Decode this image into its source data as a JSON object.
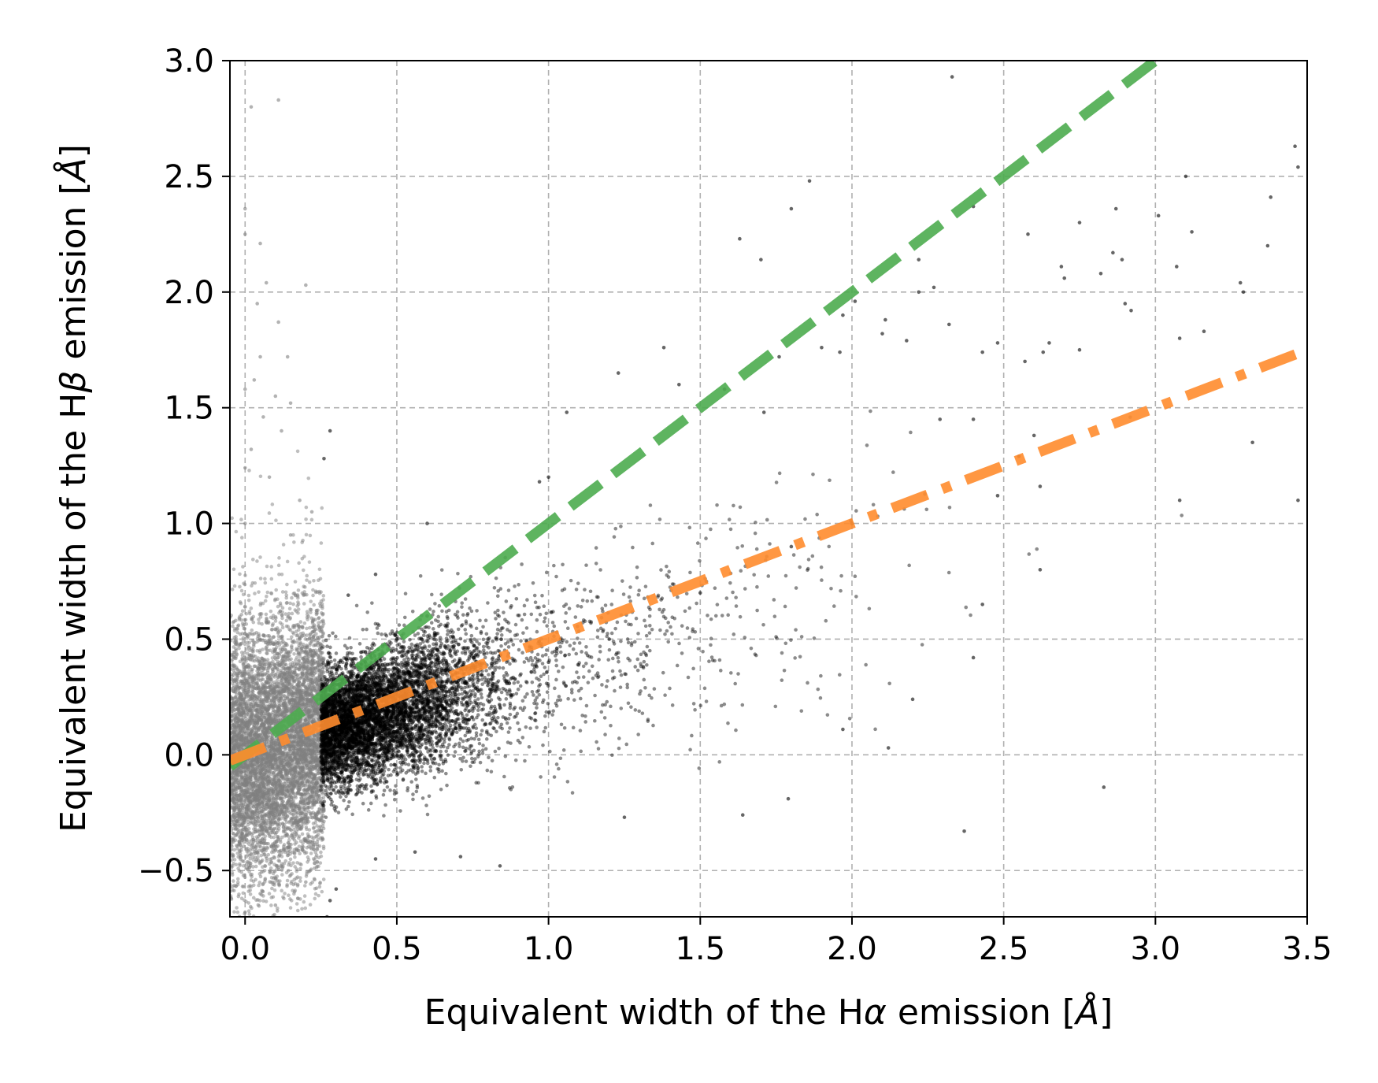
{
  "chart_data": {
    "type": "scatter",
    "title": "",
    "xlabel": {
      "prefix": "Equivalent width of the H",
      "symbol": "α",
      "suffix": " emission [",
      "unit": "Å",
      "close": "]"
    },
    "ylabel": {
      "prefix": "Equivalent width of the H",
      "symbol": "β",
      "suffix": " emission [",
      "unit": "Å",
      "close": "]"
    },
    "xlim": [
      -0.05,
      3.5
    ],
    "ylim": [
      -0.7,
      3.0
    ],
    "xticks": [
      "0.0",
      "0.5",
      "1.0",
      "1.5",
      "2.0",
      "2.5",
      "3.0",
      "3.5"
    ],
    "xtick_values": [
      0.0,
      0.5,
      1.0,
      1.5,
      2.0,
      2.5,
      3.0,
      3.5
    ],
    "yticks": [
      "−0.5",
      "0.0",
      "0.5",
      "1.0",
      "1.5",
      "2.0",
      "2.5",
      "3.0"
    ],
    "ytick_values": [
      -0.5,
      0.0,
      0.5,
      1.0,
      1.5,
      2.0,
      2.5,
      3.0
    ],
    "grid": true,
    "series": [
      {
        "kind": "scatter",
        "color": "#808080",
        "description_points": [
          [
            0.02,
            2.8
          ],
          [
            0.11,
            2.83
          ],
          [
            0.0,
            2.36
          ],
          [
            0.05,
            2.21
          ],
          [
            0.0,
            2.25
          ],
          [
            0.07,
            2.04
          ],
          [
            0.2,
            2.03
          ],
          [
            0.04,
            1.95
          ],
          [
            0.11,
            1.87
          ],
          [
            0.05,
            1.72
          ],
          [
            0.14,
            1.72
          ],
          [
            0.03,
            1.62
          ],
          [
            0.0,
            1.58
          ],
          [
            0.1,
            1.55
          ],
          [
            0.15,
            1.52
          ],
          [
            0.06,
            1.46
          ],
          [
            0.12,
            1.4
          ],
          [
            0.02,
            1.32
          ],
          [
            0.0,
            1.24
          ],
          [
            0.08,
            1.2
          ],
          [
            0.18,
            1.1
          ],
          [
            0.22,
            1.05
          ],
          [
            0.0,
            1.0
          ],
          [
            0.15,
            0.95
          ],
          [
            0.05,
            -0.6
          ],
          [
            0.1,
            -0.65
          ],
          [
            0.2,
            -0.55
          ],
          [
            0.0,
            -0.68
          ]
        ]
      },
      {
        "kind": "scatter",
        "color": "#000000",
        "description_points": [
          [
            2.33,
            2.93
          ],
          [
            1.8,
            2.36
          ],
          [
            1.63,
            2.23
          ],
          [
            1.7,
            2.14
          ],
          [
            2.22,
            2.14
          ],
          [
            1.86,
            2.48
          ],
          [
            2.4,
            2.37
          ],
          [
            2.58,
            2.25
          ],
          [
            2.87,
            2.36
          ],
          [
            3.01,
            2.33
          ],
          [
            3.12,
            2.26
          ],
          [
            3.37,
            2.2
          ],
          [
            3.38,
            2.41
          ],
          [
            3.46,
            2.63
          ],
          [
            3.47,
            2.54
          ],
          [
            3.1,
            2.5
          ],
          [
            2.75,
            2.3
          ],
          [
            2.69,
            2.11
          ],
          [
            2.86,
            2.17
          ],
          [
            2.89,
            2.14
          ],
          [
            3.07,
            2.11
          ],
          [
            2.82,
            2.08
          ],
          [
            2.7,
            2.06
          ],
          [
            2.27,
            2.02
          ],
          [
            2.22,
            2.0
          ],
          [
            2.9,
            1.95
          ],
          [
            2.92,
            1.92
          ],
          [
            3.28,
            2.04
          ],
          [
            3.29,
            2.0
          ],
          [
            3.16,
            1.83
          ],
          [
            2.32,
            1.86
          ],
          [
            2.11,
            1.88
          ],
          [
            2.18,
            1.79
          ],
          [
            2.48,
            1.78
          ],
          [
            2.65,
            1.78
          ],
          [
            3.08,
            1.8
          ],
          [
            2.1,
            1.82
          ],
          [
            2.01,
            1.96
          ],
          [
            1.97,
            1.9
          ],
          [
            1.9,
            1.76
          ],
          [
            1.96,
            1.74
          ],
          [
            2.43,
            1.74
          ],
          [
            2.57,
            1.7
          ],
          [
            2.63,
            1.74
          ],
          [
            2.75,
            1.75
          ],
          [
            1.38,
            1.76
          ],
          [
            1.23,
            1.65
          ],
          [
            1.76,
            1.72
          ],
          [
            1.43,
            1.6
          ],
          [
            1.58,
            1.58
          ],
          [
            1.71,
            1.48
          ],
          [
            2.29,
            1.45
          ],
          [
            2.4,
            1.45
          ],
          [
            3.47,
            1.1
          ],
          [
            3.32,
            1.35
          ],
          [
            3.08,
            1.1
          ],
          [
            2.6,
            1.38
          ],
          [
            2.55,
            1.29
          ],
          [
            2.62,
            1.16
          ],
          [
            2.48,
            1.12
          ],
          [
            2.62,
            0.8
          ],
          [
            2.43,
            0.65
          ],
          [
            2.4,
            0.42
          ],
          [
            2.83,
            -0.14
          ],
          [
            2.37,
            -0.33
          ],
          [
            2.12,
            0.03
          ],
          [
            2.2,
            0.24
          ],
          [
            1.97,
            0.11
          ],
          [
            1.79,
            -0.19
          ],
          [
            1.64,
            -0.26
          ],
          [
            1.25,
            -0.27
          ],
          [
            1.06,
            1.48
          ],
          [
            1.0,
            1.2
          ],
          [
            0.97,
            1.18
          ],
          [
            0.6,
            1.0
          ],
          [
            0.26,
            1.28
          ],
          [
            0.28,
            1.4
          ],
          [
            0.34,
            0.69
          ],
          [
            0.43,
            0.78
          ],
          [
            0.5,
            0.5
          ],
          [
            0.6,
            0.6
          ],
          [
            0.8,
            0.3
          ],
          [
            1.0,
            0.4
          ],
          [
            1.2,
            0.5
          ],
          [
            1.5,
            0.7
          ],
          [
            1.8,
            0.9
          ],
          [
            2.0,
            1.0
          ],
          [
            0.3,
            -0.58
          ],
          [
            0.28,
            -0.63
          ],
          [
            0.27,
            -0.7
          ],
          [
            0.43,
            -0.45
          ],
          [
            0.56,
            -0.42
          ],
          [
            0.84,
            -0.48
          ],
          [
            0.71,
            -0.44
          ]
        ]
      },
      {
        "kind": "line",
        "style": "dashed",
        "color": "#4dac4f",
        "x": [
          -0.05,
          3.02
        ],
        "y": [
          -0.05,
          3.02
        ]
      },
      {
        "kind": "line",
        "style": "dashdot",
        "color": "#ff8c2e",
        "x": [
          -0.05,
          3.5
        ],
        "y": [
          -0.025,
          1.75
        ]
      }
    ]
  }
}
